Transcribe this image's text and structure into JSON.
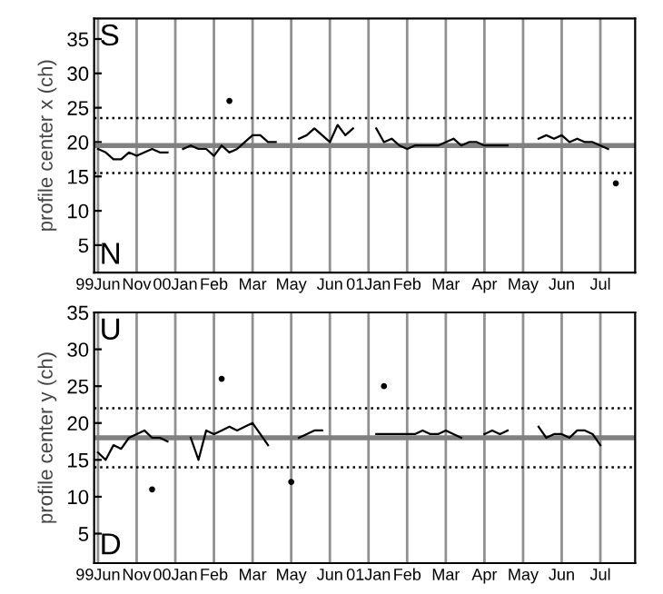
{
  "chart_data": [
    {
      "type": "line",
      "ylabel": "profile center x (ch)",
      "annotations": [
        "S",
        "N"
      ],
      "categories": [
        "99Jun",
        null,
        null,
        null,
        null,
        "Nov",
        null,
        null,
        null,
        null,
        "00Jan",
        null,
        null,
        null,
        null,
        "Feb",
        null,
        null,
        null,
        null,
        "Mar",
        null,
        null,
        null,
        null,
        "May",
        null,
        null,
        null,
        null,
        "Jun",
        null,
        null,
        null,
        null,
        "01Jan",
        null,
        null,
        null,
        null,
        "Feb",
        null,
        null,
        null,
        null,
        "Mar",
        null,
        null,
        null,
        null,
        "Apr",
        null,
        null,
        null,
        null,
        "May",
        null,
        null,
        null,
        null,
        "Jun",
        null,
        null,
        null,
        null,
        "Jul",
        null,
        null,
        null,
        null
      ],
      "ylim": [
        1,
        38
      ],
      "yticks": [
        5,
        10,
        15,
        20,
        25,
        30,
        35
      ],
      "grid": "x",
      "marker": "none",
      "line_style": "solid",
      "ref_lines": [
        {
          "axis": "y",
          "value": 19.5,
          "color": "#808080",
          "line_style": "solid"
        },
        {
          "axis": "y",
          "value": 23.5,
          "color": "#000000",
          "line_style": "dotted"
        },
        {
          "axis": "y",
          "value": 15.5,
          "color": "#000000",
          "line_style": "dotted"
        }
      ],
      "series": [
        {
          "color": "#000000",
          "values": [
            19,
            18.5,
            17.5,
            17.5,
            18.5,
            18,
            18.5,
            19,
            18.5,
            18.5,
            null,
            19,
            19.5,
            19,
            19,
            18,
            19.5,
            18.5,
            19,
            20,
            21,
            21,
            20,
            20,
            null,
            null,
            20.5,
            21,
            22,
            21,
            20,
            22.5,
            21,
            22,
            null,
            null,
            22,
            20,
            20.5,
            19.5,
            19,
            19.5,
            19.5,
            19.5,
            19.5,
            20,
            20.5,
            19.5,
            20,
            20,
            19.5,
            19.5,
            19.5,
            19.5,
            null,
            null,
            null,
            20.5,
            21,
            20.5,
            21,
            20,
            20.5,
            20,
            20,
            19.5,
            19,
            null,
            null,
            null
          ]
        },
        {
          "type": "scatter",
          "color": "#000000",
          "marker": "circle",
          "values": [
            null,
            null,
            null,
            null,
            null,
            null,
            null,
            null,
            null,
            null,
            null,
            null,
            null,
            null,
            null,
            null,
            null,
            26,
            null,
            null,
            null,
            null,
            null,
            null,
            null,
            null,
            null,
            null,
            null,
            null,
            null,
            null,
            null,
            null,
            null,
            null,
            null,
            null,
            null,
            null,
            null,
            null,
            null,
            null,
            null,
            null,
            null,
            null,
            null,
            null,
            null,
            null,
            null,
            null,
            null,
            null,
            null,
            null,
            null,
            null,
            null,
            null,
            null,
            null,
            null,
            null,
            null,
            14,
            null,
            null
          ]
        }
      ]
    },
    {
      "type": "line",
      "ylabel": "profile center y (ch)",
      "annotations": [
        "U",
        "D"
      ],
      "categories": [
        "99Jun",
        null,
        null,
        null,
        null,
        "Nov",
        null,
        null,
        null,
        null,
        "00Jan",
        null,
        null,
        null,
        null,
        "Feb",
        null,
        null,
        null,
        null,
        "Mar",
        null,
        null,
        null,
        null,
        "May",
        null,
        null,
        null,
        null,
        "Jun",
        null,
        null,
        null,
        null,
        "01Jan",
        null,
        null,
        null,
        null,
        "Feb",
        null,
        null,
        null,
        null,
        "Mar",
        null,
        null,
        null,
        null,
        "Apr",
        null,
        null,
        null,
        null,
        "May",
        null,
        null,
        null,
        null,
        "Jun",
        null,
        null,
        null,
        null,
        "Jul",
        null,
        null,
        null,
        null
      ],
      "ylim": [
        1,
        35
      ],
      "yticks": [
        5,
        10,
        15,
        20,
        25,
        30,
        35
      ],
      "grid": "x",
      "marker": "none",
      "line_style": "solid",
      "ref_lines": [
        {
          "axis": "y",
          "value": 18,
          "color": "#808080",
          "line_style": "solid"
        },
        {
          "axis": "y",
          "value": 22,
          "color": "#000000",
          "line_style": "dotted"
        },
        {
          "axis": "y",
          "value": 14,
          "color": "#000000",
          "line_style": "dotted"
        }
      ],
      "series": [
        {
          "color": "#000000",
          "values": [
            16,
            15,
            17,
            16.5,
            18,
            18.5,
            19,
            18,
            18,
            17.5,
            null,
            null,
            18,
            15,
            19,
            18.5,
            19,
            19.5,
            19,
            19.5,
            20,
            18.5,
            17,
            null,
            null,
            null,
            18,
            18.5,
            19,
            19,
            null,
            null,
            null,
            null,
            null,
            null,
            18.5,
            18.5,
            18.5,
            18.5,
            18.5,
            18.5,
            19,
            18.5,
            18.5,
            19,
            18.5,
            18,
            null,
            null,
            18.5,
            19,
            18.5,
            19,
            null,
            null,
            null,
            19.5,
            18,
            18.5,
            18.5,
            18,
            19,
            19,
            18.5,
            17,
            null,
            null,
            null,
            null
          ]
        },
        {
          "type": "scatter",
          "color": "#000000",
          "marker": "circle",
          "values": [
            null,
            null,
            null,
            null,
            null,
            null,
            null,
            11,
            null,
            null,
            null,
            null,
            null,
            null,
            null,
            null,
            26,
            null,
            null,
            null,
            null,
            null,
            null,
            null,
            null,
            12,
            null,
            null,
            null,
            null,
            null,
            null,
            null,
            null,
            null,
            null,
            null,
            25,
            null,
            null,
            null,
            null,
            null,
            null,
            null,
            null,
            null,
            null,
            null,
            null,
            null,
            null,
            null,
            null,
            null,
            null,
            null,
            null,
            null,
            null,
            null,
            null,
            null,
            null,
            null,
            null,
            null,
            null,
            null,
            null
          ]
        }
      ]
    }
  ]
}
